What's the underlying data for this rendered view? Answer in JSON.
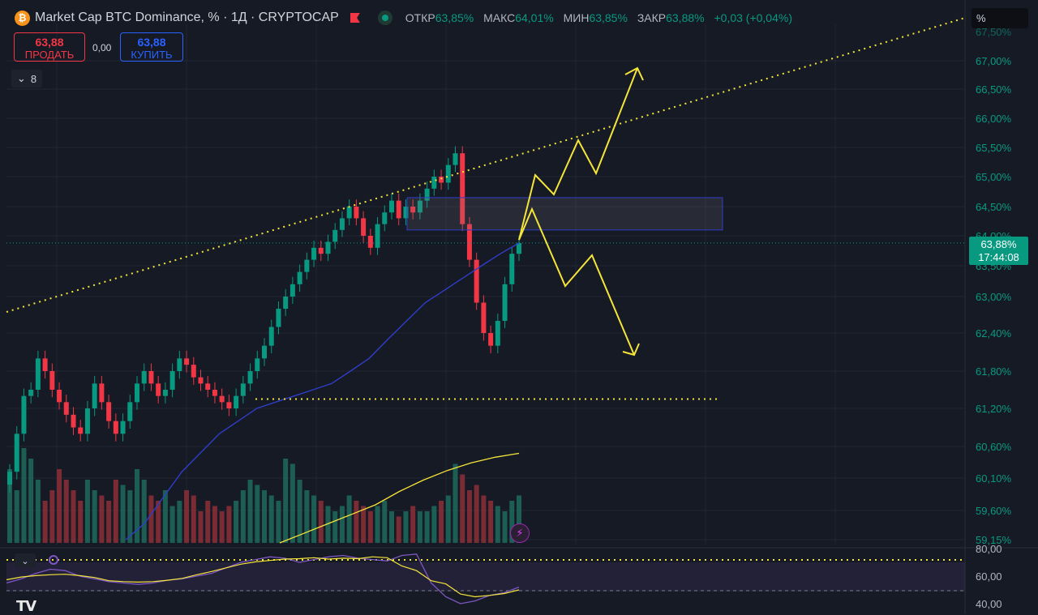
{
  "header": {
    "coin_glyph": "₿",
    "title": "Market Cap BTC Dominance, % · 1Д · CRYPTOCAP",
    "ohlc": [
      {
        "label": "ОТКР",
        "value": "63,85%"
      },
      {
        "label": "МАКС",
        "value": "64,01%"
      },
      {
        "label": "МИН",
        "value": "63,85%"
      },
      {
        "label": "ЗАКР",
        "value": "63,88%"
      }
    ],
    "change": "+0,03 (+0,04%)",
    "scale_mode": "%"
  },
  "trade": {
    "sell_price": "63,88",
    "sell_label": "ПРОДАТЬ",
    "spread": "0,00",
    "buy_price": "63,88",
    "buy_label": "КУПИТЬ"
  },
  "indicators_toggle": {
    "count": "8"
  },
  "price_tag": {
    "value": "63,88%",
    "countdown": "17:44:08"
  },
  "logo_text": "TV",
  "icons": {
    "coin": "bitcoin-icon",
    "flag": "flag-icon",
    "status": "market-status-icon",
    "collapse": "chevron-down-icon",
    "bolt": "lightning-icon"
  },
  "colors": {
    "up": "#089981",
    "down": "#f23645",
    "ma": "#2f3dc8",
    "drawing": "#f5e53a",
    "rsi": "#7e57c2"
  },
  "chart_data": {
    "type": "candlestick",
    "y_axis_labels": [
      "67,00%",
      "66,50%",
      "66,00%",
      "65,50%",
      "65,00%",
      "64,50%",
      "64,00%",
      "63,50%",
      "63,00%",
      "62,40%",
      "61,80%",
      "61,20%",
      "60,60%",
      "60,10%",
      "59,60%",
      "59,15%"
    ],
    "y_axis_label_clipped": "67,50%",
    "y_range": [
      59.1,
      67.5
    ],
    "last_price": 63.88,
    "candles_close_path": [
      60.2,
      60.8,
      61.4,
      61.5,
      62.0,
      61.8,
      61.5,
      61.3,
      61.1,
      60.9,
      60.8,
      61.2,
      61.6,
      61.3,
      61.0,
      60.8,
      61.0,
      61.3,
      61.6,
      61.8,
      61.6,
      61.4,
      61.5,
      61.8,
      62.0,
      61.9,
      61.7,
      61.6,
      61.5,
      61.4,
      61.3,
      61.2,
      61.4,
      61.6,
      61.8,
      62.0,
      62.2,
      62.5,
      62.8,
      63.0,
      63.2,
      63.4,
      63.6,
      63.8,
      63.7,
      63.9,
      64.1,
      64.3,
      64.5,
      64.3,
      64.0,
      63.8,
      64.2,
      64.4,
      64.6,
      64.3,
      64.5,
      64.4,
      64.6,
      64.8,
      65.0,
      64.9,
      65.2,
      65.4,
      64.2,
      63.6,
      62.9,
      62.4,
      62.2,
      62.6,
      63.2,
      63.7,
      63.88
    ],
    "ma_line": [
      59.1,
      59.4,
      59.8,
      60.2,
      60.5,
      60.8,
      61.0,
      61.2,
      61.3,
      61.4,
      61.5,
      61.6,
      61.8,
      62.0,
      62.3,
      62.6,
      62.9,
      63.1,
      63.3,
      63.5,
      63.7,
      63.88
    ],
    "volume_bars_relative": [
      0.7,
      0.5,
      0.9,
      0.8,
      0.6,
      0.4,
      0.5,
      0.7,
      0.6,
      0.5,
      0.4,
      0.6,
      0.5,
      0.45,
      0.4,
      0.6,
      0.55,
      0.5,
      0.7,
      0.6,
      0.45,
      0.4,
      0.5,
      0.35,
      0.4,
      0.5,
      0.45,
      0.3,
      0.4,
      0.35,
      0.3,
      0.35,
      0.4,
      0.5,
      0.6,
      0.55,
      0.5,
      0.45,
      0.4,
      0.8,
      0.75,
      0.6,
      0.5,
      0.45,
      0.4,
      0.35,
      0.3,
      0.35,
      0.45,
      0.4,
      0.35,
      0.3,
      0.35,
      0.4,
      0.3,
      0.25,
      0.3,
      0.35,
      0.3,
      0.3,
      0.35,
      0.4,
      0.45,
      0.75,
      0.65,
      0.5,
      0.55,
      0.45,
      0.4,
      0.35,
      0.3,
      0.4,
      0.45
    ],
    "volume_ma": [
      0.0,
      0.05,
      0.1,
      0.15,
      0.2,
      0.27,
      0.33,
      0.38,
      0.42,
      0.45,
      0.47
    ],
    "rsi": {
      "axis_labels": [
        "80,00",
        "60,00",
        "40,00"
      ],
      "range": [
        35,
        82
      ],
      "overbought": 80,
      "values": [
        55,
        58,
        62,
        65,
        64,
        60,
        58,
        56,
        55,
        54,
        55,
        57,
        58,
        60,
        62,
        66,
        70,
        72,
        74,
        73,
        70,
        72,
        74,
        75,
        73,
        72,
        71,
        75,
        76,
        55,
        45,
        40,
        42,
        46,
        48,
        52
      ]
    },
    "drawings": {
      "upper_trendline_dotted": true,
      "support_dotted": 61.35,
      "zone_box": [
        64.1,
        64.65
      ],
      "yellow_path_up": true,
      "yellow_path_down": true
    }
  }
}
